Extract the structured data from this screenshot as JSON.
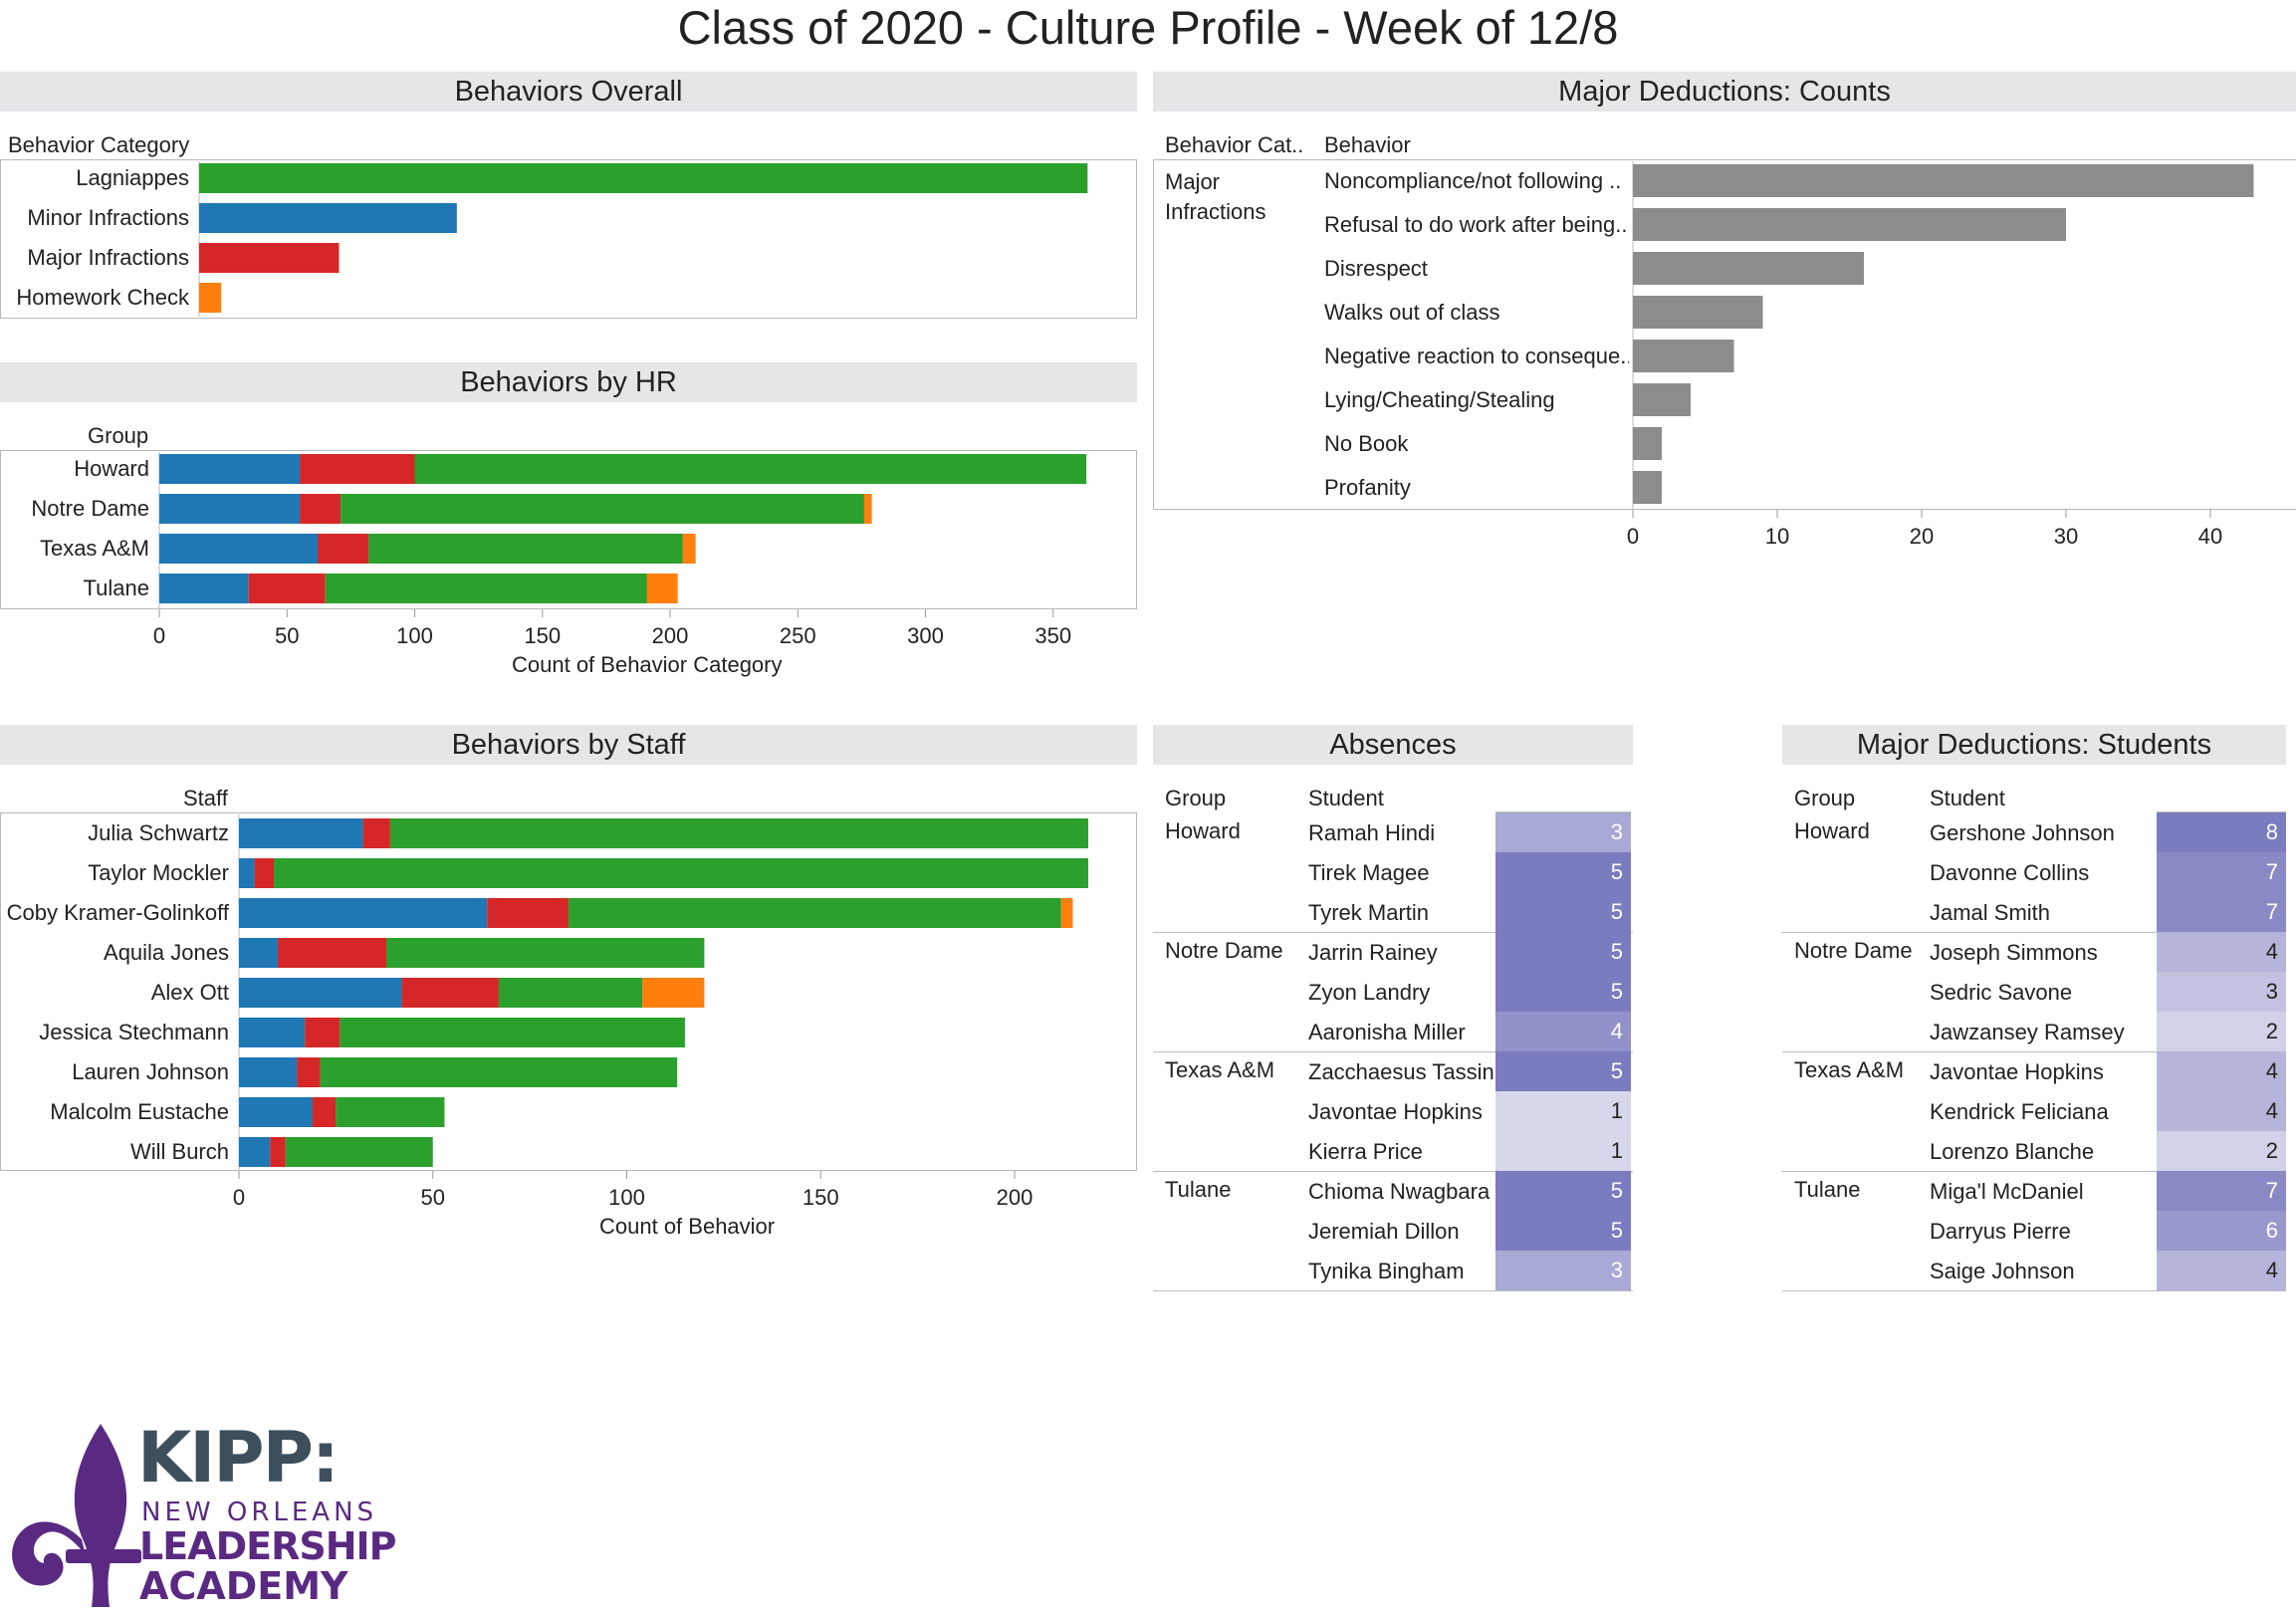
{
  "page_title": "Class of 2020 - Culture Profile - Week of 12/8",
  "colors": {
    "lagniappes": "#2ca02c",
    "minor": "#1f77b4",
    "major": "#d62728",
    "homework": "#ff7f0e",
    "deduction_bar": "#8c8c8c",
    "heat_low": "#eeeef6",
    "heat_high": "#7b7bbf"
  },
  "chart_data": [
    {
      "id": "overall",
      "type": "bar",
      "title": "Behaviors Overall",
      "row_header": "Behavior Category",
      "categories": [
        "Lagniappes",
        "Minor Infractions",
        "Major Infractions",
        "Homework Check"
      ],
      "values": [
        362,
        105,
        57,
        9
      ],
      "xlim": [
        0,
        400
      ]
    },
    {
      "id": "by_hr",
      "type": "stacked-bar",
      "title": "Behaviors by HR",
      "row_header": "Group",
      "categories": [
        "Howard",
        "Notre Dame",
        "Texas A&M",
        "Tulane"
      ],
      "series": [
        {
          "name": "Minor Infractions",
          "values": [
            55,
            55,
            62,
            35
          ]
        },
        {
          "name": "Major Infractions",
          "values": [
            45,
            16,
            20,
            30
          ]
        },
        {
          "name": "Lagniappes",
          "values": [
            263,
            205,
            123,
            126
          ]
        },
        {
          "name": "Homework Check",
          "values": [
            0,
            3,
            5,
            12
          ]
        }
      ],
      "xlabel": "Count of Behavior Category",
      "xlim": [
        0,
        380
      ],
      "xticks": [
        0,
        50,
        100,
        150,
        200,
        250,
        300,
        350
      ]
    },
    {
      "id": "deductions_counts",
      "type": "bar",
      "title": "Major Deductions: Counts",
      "col_headers": [
        "Behavior Cat..",
        "Behavior"
      ],
      "group": "Major Infractions",
      "categories": [
        "Noncompliance/not following ..",
        "Refusal to do work after being..",
        "Disrespect",
        "Walks out of class",
        "Negative reaction to conseque..",
        "Lying/Cheating/Stealing",
        "No Book",
        "Profanity"
      ],
      "values": [
        43,
        30,
        16,
        9,
        7,
        4,
        2,
        2
      ],
      "xlim": [
        0,
        45
      ],
      "xticks": [
        0,
        10,
        20,
        30,
        40
      ]
    },
    {
      "id": "by_staff",
      "type": "stacked-bar",
      "title": "Behaviors by Staff",
      "row_header": "Staff",
      "categories": [
        "Julia Schwartz",
        "Taylor Mockler",
        "Coby Kramer-Golinkoff",
        "Aquila Jones",
        "Alex Ott",
        "Jessica Stechmann",
        "Lauren Johnson",
        "Malcolm Eustache",
        "Will Burch"
      ],
      "series": [
        {
          "name": "Minor Infractions",
          "values": [
            32,
            4,
            64,
            10,
            42,
            17,
            15,
            19,
            8
          ]
        },
        {
          "name": "Major Infractions",
          "values": [
            7,
            5,
            21,
            28,
            25,
            9,
            6,
            6,
            4
          ]
        },
        {
          "name": "Lagniappes",
          "values": [
            180,
            210,
            127,
            82,
            37,
            89,
            92,
            28,
            38
          ]
        },
        {
          "name": "Homework Check",
          "values": [
            0,
            0,
            3,
            0,
            16,
            0,
            0,
            0,
            0
          ]
        }
      ],
      "xlabel": "Count of Behavior",
      "xlim": [
        0,
        230
      ],
      "xticks": [
        0,
        50,
        100,
        150,
        200
      ]
    }
  ],
  "absences": {
    "title": "Absences",
    "col_group": "Group",
    "col_student": "Student",
    "groups": [
      {
        "name": "Howard",
        "rows": [
          {
            "student": "Ramah Hindi",
            "value": "3"
          },
          {
            "student": "Tirek Magee",
            "value": "5"
          },
          {
            "student": "Tyrek Martin",
            "value": "5"
          }
        ]
      },
      {
        "name": "Notre Dame",
        "rows": [
          {
            "student": "Jarrin Rainey",
            "value": "5"
          },
          {
            "student": "Zyon Landry",
            "value": "5"
          },
          {
            "student": "Aaronisha Miller",
            "value": "4"
          }
        ]
      },
      {
        "name": "Texas A&M",
        "rows": [
          {
            "student": "Zacchaesus Tassin",
            "value": "5"
          },
          {
            "student": "Javontae Hopkins",
            "value": "1"
          },
          {
            "student": "Kierra Price",
            "value": "1"
          }
        ]
      },
      {
        "name": "Tulane",
        "rows": [
          {
            "student": "Chioma Nwagbara",
            "value": "5"
          },
          {
            "student": "Jeremiah Dillon",
            "value": "5"
          },
          {
            "student": "Tynika Bingham",
            "value": "3"
          }
        ]
      }
    ]
  },
  "deduction_students": {
    "title": "Major Deductions: Students",
    "col_group": "Group",
    "col_student": "Student",
    "groups": [
      {
        "name": "Howard",
        "rows": [
          {
            "student": "Gershone Johnson",
            "value": "8"
          },
          {
            "student": "Davonne Collins",
            "value": "7"
          },
          {
            "student": "Jamal Smith",
            "value": "7"
          }
        ]
      },
      {
        "name": "Notre Dame",
        "rows": [
          {
            "student": "Joseph Simmons",
            "value": "4"
          },
          {
            "student": "Sedric Savone",
            "value": "3"
          },
          {
            "student": "Jawzansey Ramsey",
            "value": "2"
          }
        ]
      },
      {
        "name": "Texas A&M",
        "rows": [
          {
            "student": "Javontae Hopkins",
            "value": "4"
          },
          {
            "student": "Kendrick Feliciana",
            "value": "4"
          },
          {
            "student": "Lorenzo Blanche",
            "value": "2"
          }
        ]
      },
      {
        "name": "Tulane",
        "rows": [
          {
            "student": "Miga'l McDaniel",
            "value": "7"
          },
          {
            "student": "Darryus Pierre",
            "value": "6"
          },
          {
            "student": "Saige Johnson",
            "value": "4"
          }
        ]
      }
    ]
  },
  "logo": {
    "line1": "KIPP:",
    "line2": "NEW ORLEANS",
    "line3": "LEADERSHIP",
    "line4": "ACADEMY"
  }
}
